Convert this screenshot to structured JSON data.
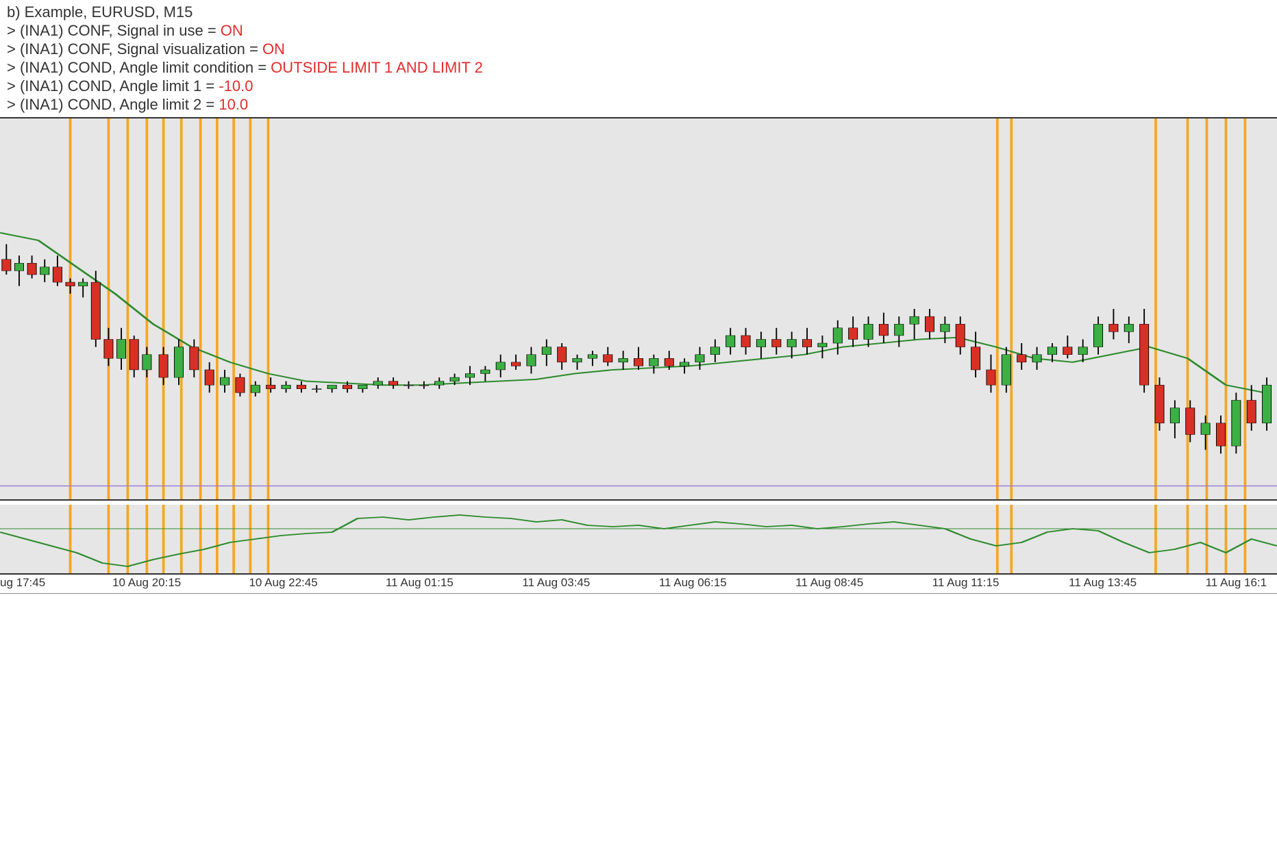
{
  "header": {
    "title": "b) Example, EURUSD, M15",
    "lines": [
      {
        "prefix": "> (INA1) CONF, Signal in use = ",
        "value": "ON"
      },
      {
        "prefix": "> (INA1) CONF, Signal visualization = ",
        "value": "ON"
      },
      {
        "prefix": "> (INA1) COND, Angle limit condition = ",
        "value": "OUTSIDE LIMIT 1 AND LIMIT 2"
      },
      {
        "prefix": "> (INA1) COND, Angle limit 1 = ",
        "value": "-10.0"
      },
      {
        "prefix": "> (INA1) COND, Angle limit 2 = ",
        "value": "10.0"
      }
    ],
    "text_color": "#333333",
    "value_color": "#e52b2b",
    "fontsize": 22
  },
  "main_chart": {
    "type": "candlestick",
    "background_color": "#e6e6e6",
    "up_color": "#3cb043",
    "down_color": "#d93025",
    "candle_border": "#000000",
    "wick_color": "#000000",
    "ma_line_color": "#2e8b2e",
    "ma_line_width": 2,
    "signal_line_color": "#f5a623",
    "signal_line_width": 2,
    "hline_color": "#9b7dd4",
    "hline_y": 0.965,
    "ylim": [
      0,
      1
    ],
    "signal_verticals_x": [
      0.055,
      0.085,
      0.1,
      0.115,
      0.128,
      0.142,
      0.157,
      0.17,
      0.183,
      0.196,
      0.21,
      0.781,
      0.792,
      0.905,
      0.93,
      0.945,
      0.96,
      0.975
    ],
    "ma_points": [
      [
        0.0,
        0.3
      ],
      [
        0.03,
        0.32
      ],
      [
        0.06,
        0.39
      ],
      [
        0.09,
        0.46
      ],
      [
        0.12,
        0.54
      ],
      [
        0.15,
        0.6
      ],
      [
        0.18,
        0.64
      ],
      [
        0.21,
        0.67
      ],
      [
        0.24,
        0.69
      ],
      [
        0.27,
        0.695
      ],
      [
        0.3,
        0.7
      ],
      [
        0.33,
        0.7
      ],
      [
        0.36,
        0.695
      ],
      [
        0.39,
        0.69
      ],
      [
        0.42,
        0.685
      ],
      [
        0.45,
        0.67
      ],
      [
        0.48,
        0.66
      ],
      [
        0.51,
        0.655
      ],
      [
        0.54,
        0.65
      ],
      [
        0.57,
        0.64
      ],
      [
        0.6,
        0.63
      ],
      [
        0.63,
        0.62
      ],
      [
        0.66,
        0.6
      ],
      [
        0.69,
        0.59
      ],
      [
        0.72,
        0.58
      ],
      [
        0.75,
        0.575
      ],
      [
        0.78,
        0.6
      ],
      [
        0.81,
        0.63
      ],
      [
        0.84,
        0.64
      ],
      [
        0.87,
        0.62
      ],
      [
        0.9,
        0.6
      ],
      [
        0.93,
        0.63
      ],
      [
        0.96,
        0.7
      ],
      [
        0.99,
        0.72
      ]
    ],
    "candles": [
      {
        "x": 0.005,
        "o": 0.37,
        "h": 0.33,
        "l": 0.41,
        "c": 0.4,
        "d": "down"
      },
      {
        "x": 0.015,
        "o": 0.4,
        "h": 0.36,
        "l": 0.44,
        "c": 0.38,
        "d": "up"
      },
      {
        "x": 0.025,
        "o": 0.38,
        "h": 0.36,
        "l": 0.42,
        "c": 0.41,
        "d": "down"
      },
      {
        "x": 0.035,
        "o": 0.41,
        "h": 0.37,
        "l": 0.43,
        "c": 0.39,
        "d": "up"
      },
      {
        "x": 0.045,
        "o": 0.39,
        "h": 0.36,
        "l": 0.44,
        "c": 0.43,
        "d": "down"
      },
      {
        "x": 0.055,
        "o": 0.43,
        "h": 0.42,
        "l": 0.46,
        "c": 0.44,
        "d": "down"
      },
      {
        "x": 0.065,
        "o": 0.44,
        "h": 0.42,
        "l": 0.47,
        "c": 0.43,
        "d": "up"
      },
      {
        "x": 0.075,
        "o": 0.43,
        "h": 0.4,
        "l": 0.6,
        "c": 0.58,
        "d": "down"
      },
      {
        "x": 0.085,
        "o": 0.58,
        "h": 0.55,
        "l": 0.65,
        "c": 0.63,
        "d": "down"
      },
      {
        "x": 0.095,
        "o": 0.63,
        "h": 0.55,
        "l": 0.66,
        "c": 0.58,
        "d": "up"
      },
      {
        "x": 0.105,
        "o": 0.58,
        "h": 0.57,
        "l": 0.68,
        "c": 0.66,
        "d": "down"
      },
      {
        "x": 0.115,
        "o": 0.66,
        "h": 0.6,
        "l": 0.68,
        "c": 0.62,
        "d": "up"
      },
      {
        "x": 0.128,
        "o": 0.62,
        "h": 0.6,
        "l": 0.7,
        "c": 0.68,
        "d": "down"
      },
      {
        "x": 0.14,
        "o": 0.68,
        "h": 0.58,
        "l": 0.7,
        "c": 0.6,
        "d": "up"
      },
      {
        "x": 0.152,
        "o": 0.6,
        "h": 0.58,
        "l": 0.68,
        "c": 0.66,
        "d": "down"
      },
      {
        "x": 0.164,
        "o": 0.66,
        "h": 0.64,
        "l": 0.72,
        "c": 0.7,
        "d": "down"
      },
      {
        "x": 0.176,
        "o": 0.7,
        "h": 0.66,
        "l": 0.72,
        "c": 0.68,
        "d": "up"
      },
      {
        "x": 0.188,
        "o": 0.68,
        "h": 0.67,
        "l": 0.73,
        "c": 0.72,
        "d": "down"
      },
      {
        "x": 0.2,
        "o": 0.72,
        "h": 0.69,
        "l": 0.73,
        "c": 0.7,
        "d": "up"
      },
      {
        "x": 0.212,
        "o": 0.7,
        "h": 0.68,
        "l": 0.72,
        "c": 0.71,
        "d": "down"
      },
      {
        "x": 0.224,
        "o": 0.71,
        "h": 0.69,
        "l": 0.72,
        "c": 0.7,
        "d": "up"
      },
      {
        "x": 0.236,
        "o": 0.7,
        "h": 0.69,
        "l": 0.72,
        "c": 0.71,
        "d": "down"
      },
      {
        "x": 0.248,
        "o": 0.71,
        "h": 0.7,
        "l": 0.72,
        "c": 0.71,
        "d": "doji"
      },
      {
        "x": 0.26,
        "o": 0.71,
        "h": 0.7,
        "l": 0.72,
        "c": 0.7,
        "d": "up"
      },
      {
        "x": 0.272,
        "o": 0.7,
        "h": 0.69,
        "l": 0.72,
        "c": 0.71,
        "d": "down"
      },
      {
        "x": 0.284,
        "o": 0.71,
        "h": 0.7,
        "l": 0.72,
        "c": 0.7,
        "d": "up"
      },
      {
        "x": 0.296,
        "o": 0.7,
        "h": 0.68,
        "l": 0.71,
        "c": 0.69,
        "d": "up"
      },
      {
        "x": 0.308,
        "o": 0.69,
        "h": 0.68,
        "l": 0.71,
        "c": 0.7,
        "d": "down"
      },
      {
        "x": 0.32,
        "o": 0.7,
        "h": 0.69,
        "l": 0.71,
        "c": 0.7,
        "d": "doji"
      },
      {
        "x": 0.332,
        "o": 0.7,
        "h": 0.69,
        "l": 0.71,
        "c": 0.7,
        "d": "doji"
      },
      {
        "x": 0.344,
        "o": 0.7,
        "h": 0.68,
        "l": 0.71,
        "c": 0.69,
        "d": "up"
      },
      {
        "x": 0.356,
        "o": 0.69,
        "h": 0.67,
        "l": 0.7,
        "c": 0.68,
        "d": "up"
      },
      {
        "x": 0.368,
        "o": 0.68,
        "h": 0.65,
        "l": 0.7,
        "c": 0.67,
        "d": "up"
      },
      {
        "x": 0.38,
        "o": 0.67,
        "h": 0.65,
        "l": 0.69,
        "c": 0.66,
        "d": "up"
      },
      {
        "x": 0.392,
        "o": 0.66,
        "h": 0.62,
        "l": 0.68,
        "c": 0.64,
        "d": "up"
      },
      {
        "x": 0.404,
        "o": 0.64,
        "h": 0.62,
        "l": 0.66,
        "c": 0.65,
        "d": "down"
      },
      {
        "x": 0.416,
        "o": 0.65,
        "h": 0.6,
        "l": 0.67,
        "c": 0.62,
        "d": "up"
      },
      {
        "x": 0.428,
        "o": 0.62,
        "h": 0.58,
        "l": 0.65,
        "c": 0.6,
        "d": "up"
      },
      {
        "x": 0.44,
        "o": 0.6,
        "h": 0.59,
        "l": 0.66,
        "c": 0.64,
        "d": "down"
      },
      {
        "x": 0.452,
        "o": 0.64,
        "h": 0.62,
        "l": 0.66,
        "c": 0.63,
        "d": "up"
      },
      {
        "x": 0.464,
        "o": 0.63,
        "h": 0.61,
        "l": 0.65,
        "c": 0.62,
        "d": "up"
      },
      {
        "x": 0.476,
        "o": 0.62,
        "h": 0.6,
        "l": 0.65,
        "c": 0.64,
        "d": "down"
      },
      {
        "x": 0.488,
        "o": 0.64,
        "h": 0.61,
        "l": 0.66,
        "c": 0.63,
        "d": "up"
      },
      {
        "x": 0.5,
        "o": 0.63,
        "h": 0.6,
        "l": 0.66,
        "c": 0.65,
        "d": "down"
      },
      {
        "x": 0.512,
        "o": 0.65,
        "h": 0.62,
        "l": 0.67,
        "c": 0.63,
        "d": "up"
      },
      {
        "x": 0.524,
        "o": 0.63,
        "h": 0.61,
        "l": 0.66,
        "c": 0.65,
        "d": "down"
      },
      {
        "x": 0.536,
        "o": 0.65,
        "h": 0.63,
        "l": 0.67,
        "c": 0.64,
        "d": "up"
      },
      {
        "x": 0.548,
        "o": 0.64,
        "h": 0.6,
        "l": 0.66,
        "c": 0.62,
        "d": "up"
      },
      {
        "x": 0.56,
        "o": 0.62,
        "h": 0.58,
        "l": 0.64,
        "c": 0.6,
        "d": "up"
      },
      {
        "x": 0.572,
        "o": 0.6,
        "h": 0.55,
        "l": 0.62,
        "c": 0.57,
        "d": "up"
      },
      {
        "x": 0.584,
        "o": 0.57,
        "h": 0.55,
        "l": 0.62,
        "c": 0.6,
        "d": "down"
      },
      {
        "x": 0.596,
        "o": 0.6,
        "h": 0.56,
        "l": 0.63,
        "c": 0.58,
        "d": "up"
      },
      {
        "x": 0.608,
        "o": 0.58,
        "h": 0.55,
        "l": 0.62,
        "c": 0.6,
        "d": "down"
      },
      {
        "x": 0.62,
        "o": 0.6,
        "h": 0.56,
        "l": 0.63,
        "c": 0.58,
        "d": "up"
      },
      {
        "x": 0.632,
        "o": 0.58,
        "h": 0.55,
        "l": 0.62,
        "c": 0.6,
        "d": "down"
      },
      {
        "x": 0.644,
        "o": 0.6,
        "h": 0.57,
        "l": 0.63,
        "c": 0.59,
        "d": "up"
      },
      {
        "x": 0.656,
        "o": 0.59,
        "h": 0.53,
        "l": 0.62,
        "c": 0.55,
        "d": "up"
      },
      {
        "x": 0.668,
        "o": 0.55,
        "h": 0.52,
        "l": 0.6,
        "c": 0.58,
        "d": "down"
      },
      {
        "x": 0.68,
        "o": 0.58,
        "h": 0.52,
        "l": 0.6,
        "c": 0.54,
        "d": "up"
      },
      {
        "x": 0.692,
        "o": 0.54,
        "h": 0.51,
        "l": 0.59,
        "c": 0.57,
        "d": "down"
      },
      {
        "x": 0.704,
        "o": 0.57,
        "h": 0.52,
        "l": 0.6,
        "c": 0.54,
        "d": "up"
      },
      {
        "x": 0.716,
        "o": 0.54,
        "h": 0.5,
        "l": 0.58,
        "c": 0.52,
        "d": "up"
      },
      {
        "x": 0.728,
        "o": 0.52,
        "h": 0.5,
        "l": 0.58,
        "c": 0.56,
        "d": "down"
      },
      {
        "x": 0.74,
        "o": 0.56,
        "h": 0.52,
        "l": 0.59,
        "c": 0.54,
        "d": "up"
      },
      {
        "x": 0.752,
        "o": 0.54,
        "h": 0.52,
        "l": 0.62,
        "c": 0.6,
        "d": "down"
      },
      {
        "x": 0.764,
        "o": 0.6,
        "h": 0.56,
        "l": 0.68,
        "c": 0.66,
        "d": "down"
      },
      {
        "x": 0.776,
        "o": 0.66,
        "h": 0.62,
        "l": 0.72,
        "c": 0.7,
        "d": "down"
      },
      {
        "x": 0.788,
        "o": 0.7,
        "h": 0.6,
        "l": 0.72,
        "c": 0.62,
        "d": "up"
      },
      {
        "x": 0.8,
        "o": 0.62,
        "h": 0.59,
        "l": 0.66,
        "c": 0.64,
        "d": "down"
      },
      {
        "x": 0.812,
        "o": 0.64,
        "h": 0.6,
        "l": 0.66,
        "c": 0.62,
        "d": "up"
      },
      {
        "x": 0.824,
        "o": 0.62,
        "h": 0.59,
        "l": 0.64,
        "c": 0.6,
        "d": "up"
      },
      {
        "x": 0.836,
        "o": 0.6,
        "h": 0.57,
        "l": 0.63,
        "c": 0.62,
        "d": "down"
      },
      {
        "x": 0.848,
        "o": 0.62,
        "h": 0.58,
        "l": 0.64,
        "c": 0.6,
        "d": "up"
      },
      {
        "x": 0.86,
        "o": 0.6,
        "h": 0.52,
        "l": 0.62,
        "c": 0.54,
        "d": "up"
      },
      {
        "x": 0.872,
        "o": 0.54,
        "h": 0.5,
        "l": 0.58,
        "c": 0.56,
        "d": "down"
      },
      {
        "x": 0.884,
        "o": 0.56,
        "h": 0.52,
        "l": 0.59,
        "c": 0.54,
        "d": "up"
      },
      {
        "x": 0.896,
        "o": 0.54,
        "h": 0.5,
        "l": 0.72,
        "c": 0.7,
        "d": "down"
      },
      {
        "x": 0.908,
        "o": 0.7,
        "h": 0.68,
        "l": 0.82,
        "c": 0.8,
        "d": "down"
      },
      {
        "x": 0.92,
        "o": 0.8,
        "h": 0.74,
        "l": 0.84,
        "c": 0.76,
        "d": "up"
      },
      {
        "x": 0.932,
        "o": 0.76,
        "h": 0.74,
        "l": 0.85,
        "c": 0.83,
        "d": "down"
      },
      {
        "x": 0.944,
        "o": 0.83,
        "h": 0.78,
        "l": 0.87,
        "c": 0.8,
        "d": "up"
      },
      {
        "x": 0.956,
        "o": 0.8,
        "h": 0.78,
        "l": 0.88,
        "c": 0.86,
        "d": "down"
      },
      {
        "x": 0.968,
        "o": 0.86,
        "h": 0.72,
        "l": 0.88,
        "c": 0.74,
        "d": "up"
      },
      {
        "x": 0.98,
        "o": 0.74,
        "h": 0.7,
        "l": 0.82,
        "c": 0.8,
        "d": "down"
      },
      {
        "x": 0.992,
        "o": 0.8,
        "h": 0.68,
        "l": 0.82,
        "c": 0.7,
        "d": "up"
      }
    ]
  },
  "indicator_chart": {
    "type": "line",
    "background_color": "#e6e6e6",
    "line_color": "#2e8b2e",
    "line_width": 2,
    "zero_line_color": "#2e8b2e",
    "zero_y": 0.35,
    "ylim": [
      0,
      1
    ],
    "points": [
      [
        0.0,
        0.4
      ],
      [
        0.03,
        0.55
      ],
      [
        0.06,
        0.7
      ],
      [
        0.08,
        0.85
      ],
      [
        0.1,
        0.9
      ],
      [
        0.12,
        0.8
      ],
      [
        0.14,
        0.72
      ],
      [
        0.16,
        0.65
      ],
      [
        0.18,
        0.55
      ],
      [
        0.2,
        0.5
      ],
      [
        0.22,
        0.45
      ],
      [
        0.24,
        0.42
      ],
      [
        0.26,
        0.4
      ],
      [
        0.28,
        0.2
      ],
      [
        0.3,
        0.18
      ],
      [
        0.32,
        0.22
      ],
      [
        0.34,
        0.18
      ],
      [
        0.36,
        0.15
      ],
      [
        0.38,
        0.18
      ],
      [
        0.4,
        0.2
      ],
      [
        0.42,
        0.25
      ],
      [
        0.44,
        0.22
      ],
      [
        0.46,
        0.3
      ],
      [
        0.48,
        0.32
      ],
      [
        0.5,
        0.3
      ],
      [
        0.52,
        0.35
      ],
      [
        0.54,
        0.3
      ],
      [
        0.56,
        0.25
      ],
      [
        0.58,
        0.28
      ],
      [
        0.6,
        0.32
      ],
      [
        0.62,
        0.3
      ],
      [
        0.64,
        0.35
      ],
      [
        0.66,
        0.32
      ],
      [
        0.68,
        0.28
      ],
      [
        0.7,
        0.25
      ],
      [
        0.72,
        0.3
      ],
      [
        0.74,
        0.35
      ],
      [
        0.76,
        0.5
      ],
      [
        0.78,
        0.6
      ],
      [
        0.8,
        0.55
      ],
      [
        0.82,
        0.4
      ],
      [
        0.84,
        0.35
      ],
      [
        0.86,
        0.38
      ],
      [
        0.88,
        0.55
      ],
      [
        0.9,
        0.7
      ],
      [
        0.92,
        0.65
      ],
      [
        0.94,
        0.55
      ],
      [
        0.96,
        0.7
      ],
      [
        0.98,
        0.5
      ],
      [
        1.0,
        0.6
      ]
    ]
  },
  "time_axis": {
    "labels": [
      {
        "text": "ug 17:45",
        "x": 0.0
      },
      {
        "text": "10 Aug 20:15",
        "x": 0.088
      },
      {
        "text": "10 Aug 22:45",
        "x": 0.195
      },
      {
        "text": "11 Aug 01:15",
        "x": 0.302
      },
      {
        "text": "11 Aug 03:45",
        "x": 0.409
      },
      {
        "text": "11 Aug 06:15",
        "x": 0.516
      },
      {
        "text": "11 Aug 08:45",
        "x": 0.623
      },
      {
        "text": "11 Aug 11:15",
        "x": 0.73
      },
      {
        "text": "11 Aug 13:45",
        "x": 0.837
      },
      {
        "text": "11 Aug 16:1",
        "x": 0.944
      }
    ],
    "fontsize": 17,
    "color": "#333333"
  }
}
